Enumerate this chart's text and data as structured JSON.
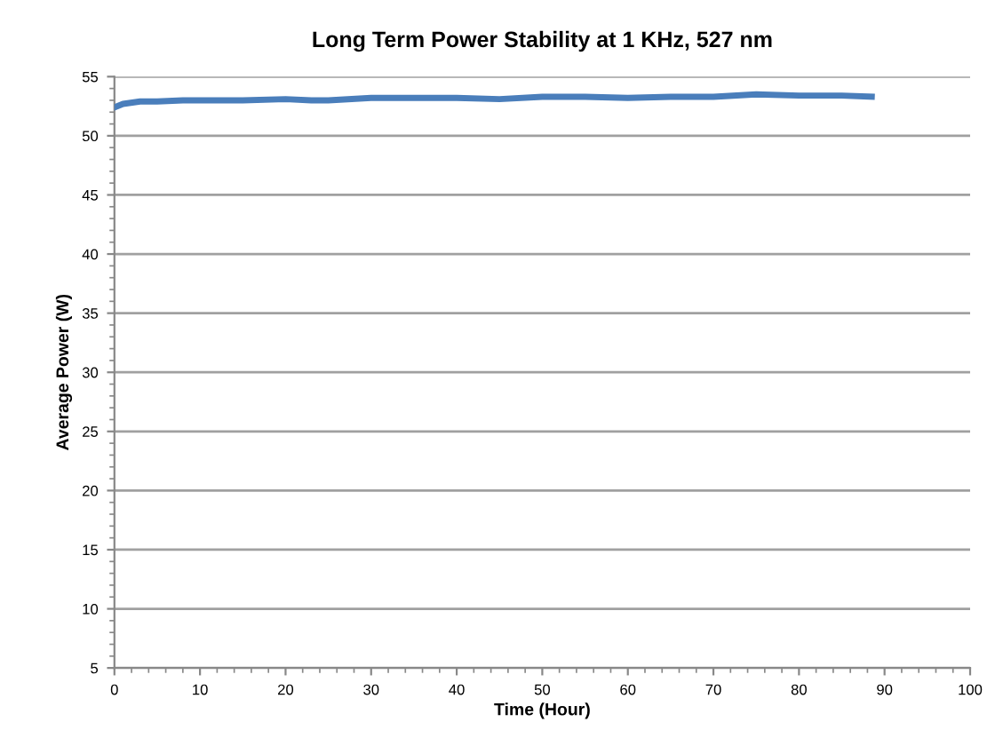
{
  "chart_data": {
    "type": "line",
    "title": "Long Term Power Stability at 1 KHz, 527 nm",
    "xlabel": "Time (Hour)",
    "ylabel": "Average Power (W)",
    "series": [
      {
        "color": "#4a7ebb",
        "x": [
          0,
          1,
          3,
          5,
          8,
          10,
          15,
          20,
          23,
          25,
          30,
          35,
          40,
          45,
          50,
          55,
          60,
          65,
          70,
          75,
          80,
          85,
          88.5
        ],
        "values": [
          52.4,
          52.7,
          52.9,
          52.9,
          53.0,
          53.0,
          53.0,
          53.1,
          53.0,
          53.0,
          53.2,
          53.2,
          53.2,
          53.1,
          53.3,
          53.3,
          53.2,
          53.3,
          53.3,
          53.5,
          53.4,
          53.4,
          53.3
        ]
      }
    ],
    "xlim": [
      0,
      100
    ],
    "xticks": [
      0,
      10,
      20,
      30,
      40,
      50,
      60,
      70,
      80,
      90,
      100
    ],
    "ylim": [
      5,
      55
    ],
    "yticks": [
      5,
      10,
      15,
      20,
      25,
      30,
      35,
      40,
      45,
      50,
      55
    ],
    "grid": "y",
    "marker": "none",
    "line_style": "solid"
  }
}
